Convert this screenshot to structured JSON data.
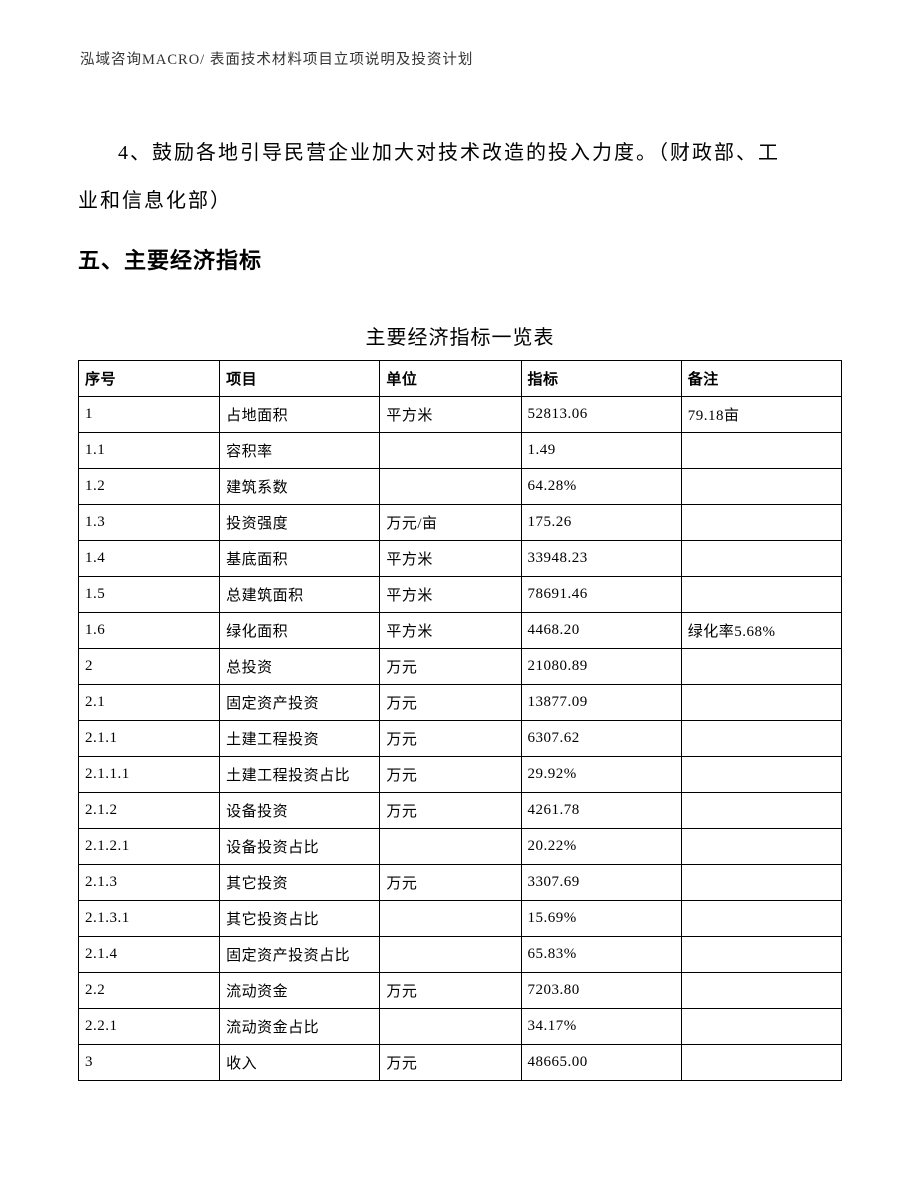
{
  "header": "泓域咨询MACRO/ 表面技术材料项目立项说明及投资计划",
  "paragraph": {
    "line1": "4、鼓励各地引导民营企业加大对技术改造的投入力度。（财政部、工",
    "line2": "业和信息化部）"
  },
  "section_heading": "五、主要经济指标",
  "table_title": "主要经济指标一览表",
  "table": {
    "columns": [
      "序号",
      "项目",
      "单位",
      "指标",
      "备注"
    ],
    "column_widths_pct": [
      18.5,
      21,
      18.5,
      21,
      21
    ],
    "border_color": "#000000",
    "font_size_pt": 11,
    "header_font_weight": "bold",
    "rows": [
      [
        "1",
        "占地面积",
        "平方米",
        "52813.06",
        "79.18亩"
      ],
      [
        "1.1",
        "容积率",
        "",
        "1.49",
        ""
      ],
      [
        "1.2",
        "建筑系数",
        "",
        "64.28%",
        ""
      ],
      [
        "1.3",
        "投资强度",
        "万元/亩",
        "175.26",
        ""
      ],
      [
        "1.4",
        "基底面积",
        "平方米",
        "33948.23",
        ""
      ],
      [
        "1.5",
        "总建筑面积",
        "平方米",
        "78691.46",
        ""
      ],
      [
        "1.6",
        "绿化面积",
        "平方米",
        "4468.20",
        "绿化率5.68%"
      ],
      [
        "2",
        "总投资",
        "万元",
        "21080.89",
        ""
      ],
      [
        "2.1",
        "固定资产投资",
        "万元",
        "13877.09",
        ""
      ],
      [
        "2.1.1",
        "土建工程投资",
        "万元",
        "6307.62",
        ""
      ],
      [
        "2.1.1.1",
        "土建工程投资占比",
        "万元",
        "29.92%",
        ""
      ],
      [
        "2.1.2",
        "设备投资",
        "万元",
        "4261.78",
        ""
      ],
      [
        "2.1.2.1",
        "设备投资占比",
        "",
        "20.22%",
        ""
      ],
      [
        "2.1.3",
        "其它投资",
        "万元",
        "3307.69",
        ""
      ],
      [
        "2.1.3.1",
        "其它投资占比",
        "",
        "15.69%",
        ""
      ],
      [
        "2.1.4",
        "固定资产投资占比",
        "",
        "65.83%",
        ""
      ],
      [
        "2.2",
        "流动资金",
        "万元",
        "7203.80",
        ""
      ],
      [
        "2.2.1",
        "流动资金占比",
        "",
        "34.17%",
        ""
      ],
      [
        "3",
        "收入",
        "万元",
        "48665.00",
        ""
      ]
    ]
  },
  "styles": {
    "page_background": "#ffffff",
    "text_color": "#000000",
    "header_color": "#333333",
    "body_font_size_pt": 15,
    "heading_font_size_pt": 16.5,
    "line_height": 2.4
  }
}
